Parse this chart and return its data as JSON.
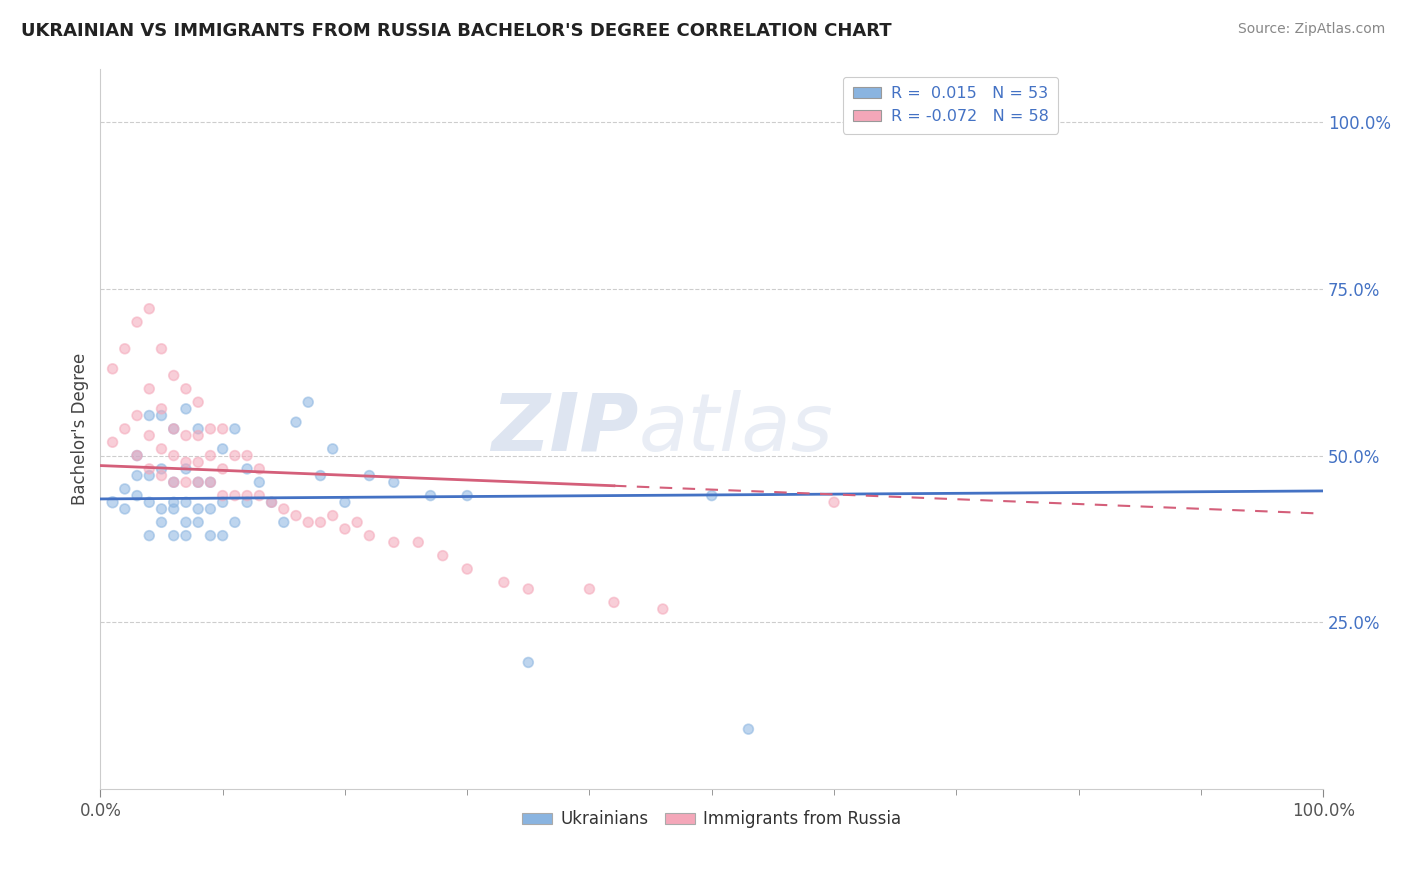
{
  "title": "UKRAINIAN VS IMMIGRANTS FROM RUSSIA BACHELOR'S DEGREE CORRELATION CHART",
  "source": "Source: ZipAtlas.com",
  "ylabel": "Bachelor's Degree",
  "watermark_zip": "ZIP",
  "watermark_atlas": "atlas",
  "legend_r1": "R =  0.015",
  "legend_n1": "N = 53",
  "legend_r2": "R = -0.072",
  "legend_n2": "N = 58",
  "ytick_labels": [
    "25.0%",
    "50.0%",
    "75.0%",
    "100.0%"
  ],
  "ytick_values": [
    0.25,
    0.5,
    0.75,
    1.0
  ],
  "xlim": [
    0.0,
    1.0
  ],
  "ylim": [
    0.0,
    1.08
  ],
  "blue_color": "#8ab4e0",
  "pink_color": "#f4a7b9",
  "blue_line_color": "#4472c4",
  "pink_line_color": "#d45f7a",
  "grid_color": "#c8c8c8",
  "background_color": "#ffffff",
  "ukrainians_x": [
    0.01,
    0.02,
    0.02,
    0.03,
    0.03,
    0.03,
    0.04,
    0.04,
    0.04,
    0.04,
    0.05,
    0.05,
    0.05,
    0.05,
    0.06,
    0.06,
    0.06,
    0.06,
    0.06,
    0.07,
    0.07,
    0.07,
    0.07,
    0.07,
    0.08,
    0.08,
    0.08,
    0.08,
    0.09,
    0.09,
    0.09,
    0.1,
    0.1,
    0.1,
    0.11,
    0.11,
    0.12,
    0.12,
    0.13,
    0.14,
    0.15,
    0.16,
    0.17,
    0.18,
    0.19,
    0.2,
    0.22,
    0.24,
    0.27,
    0.3,
    0.35,
    0.5,
    0.53
  ],
  "ukrainians_y": [
    0.43,
    0.42,
    0.45,
    0.44,
    0.47,
    0.5,
    0.38,
    0.43,
    0.47,
    0.56,
    0.4,
    0.42,
    0.48,
    0.56,
    0.38,
    0.42,
    0.43,
    0.46,
    0.54,
    0.38,
    0.4,
    0.43,
    0.48,
    0.57,
    0.4,
    0.42,
    0.46,
    0.54,
    0.38,
    0.42,
    0.46,
    0.38,
    0.43,
    0.51,
    0.4,
    0.54,
    0.43,
    0.48,
    0.46,
    0.43,
    0.4,
    0.55,
    0.58,
    0.47,
    0.51,
    0.43,
    0.47,
    0.46,
    0.44,
    0.44,
    0.19,
    0.44,
    0.09
  ],
  "ukrainians_size": [
    60,
    50,
    50,
    50,
    50,
    50,
    50,
    50,
    50,
    50,
    50,
    50,
    50,
    50,
    50,
    50,
    50,
    50,
    50,
    50,
    50,
    50,
    50,
    50,
    50,
    50,
    50,
    50,
    50,
    50,
    50,
    50,
    50,
    50,
    50,
    50,
    50,
    50,
    50,
    50,
    50,
    50,
    50,
    50,
    50,
    50,
    50,
    50,
    50,
    50,
    50,
    50,
    50
  ],
  "russia_x": [
    0.01,
    0.01,
    0.02,
    0.02,
    0.03,
    0.03,
    0.03,
    0.04,
    0.04,
    0.04,
    0.04,
    0.05,
    0.05,
    0.05,
    0.05,
    0.06,
    0.06,
    0.06,
    0.06,
    0.07,
    0.07,
    0.07,
    0.07,
    0.08,
    0.08,
    0.08,
    0.08,
    0.09,
    0.09,
    0.09,
    0.1,
    0.1,
    0.1,
    0.11,
    0.11,
    0.12,
    0.12,
    0.13,
    0.13,
    0.14,
    0.15,
    0.16,
    0.17,
    0.18,
    0.19,
    0.2,
    0.21,
    0.22,
    0.24,
    0.26,
    0.28,
    0.3,
    0.33,
    0.35,
    0.4,
    0.42,
    0.46,
    0.6
  ],
  "russia_y": [
    0.52,
    0.63,
    0.54,
    0.66,
    0.5,
    0.56,
    0.7,
    0.48,
    0.53,
    0.6,
    0.72,
    0.47,
    0.51,
    0.57,
    0.66,
    0.46,
    0.5,
    0.54,
    0.62,
    0.46,
    0.49,
    0.53,
    0.6,
    0.46,
    0.49,
    0.53,
    0.58,
    0.46,
    0.5,
    0.54,
    0.44,
    0.48,
    0.54,
    0.44,
    0.5,
    0.44,
    0.5,
    0.44,
    0.48,
    0.43,
    0.42,
    0.41,
    0.4,
    0.4,
    0.41,
    0.39,
    0.4,
    0.38,
    0.37,
    0.37,
    0.35,
    0.33,
    0.31,
    0.3,
    0.3,
    0.28,
    0.27,
    0.43
  ],
  "russia_size": [
    50,
    50,
    50,
    50,
    50,
    50,
    50,
    50,
    50,
    50,
    50,
    50,
    50,
    50,
    50,
    50,
    50,
    50,
    50,
    50,
    50,
    50,
    50,
    50,
    50,
    50,
    50,
    50,
    50,
    50,
    50,
    50,
    50,
    50,
    50,
    50,
    50,
    50,
    50,
    50,
    50,
    50,
    50,
    50,
    50,
    50,
    50,
    50,
    50,
    50,
    50,
    50,
    50,
    50,
    50,
    50,
    50,
    50
  ],
  "blue_intercept": 0.435,
  "blue_slope": 0.012,
  "pink_intercept": 0.485,
  "pink_slope": -0.072
}
